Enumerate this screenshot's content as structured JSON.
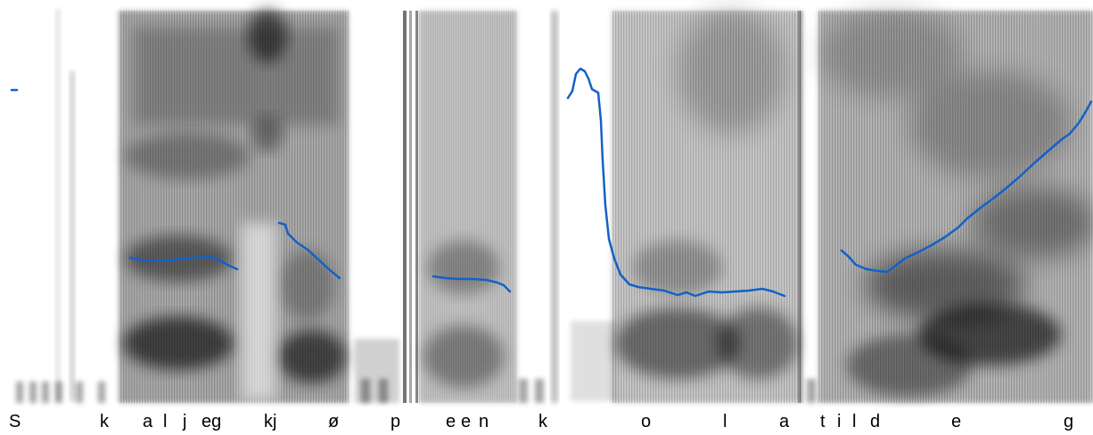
{
  "colors": {
    "background": "#ffffff",
    "spectrogram_ink": "#000000",
    "pitch_contour": "#1560c8",
    "label_text": "#000000"
  },
  "segment_labels": [
    {
      "text": "S"
    },
    {
      "text": "k"
    },
    {
      "text": "a"
    },
    {
      "text": "l"
    },
    {
      "text": "j"
    },
    {
      "text": "eg"
    },
    {
      "text": "kj"
    },
    {
      "text": "ø"
    },
    {
      "text": "p"
    },
    {
      "text": "e"
    },
    {
      "text": "e"
    },
    {
      "text": "n"
    },
    {
      "text": "k"
    },
    {
      "text": "o"
    },
    {
      "text": "l"
    },
    {
      "text": "a"
    },
    {
      "text": "t"
    },
    {
      "text": "i"
    },
    {
      "text": "l"
    },
    {
      "text": "d"
    },
    {
      "text": "e"
    },
    {
      "text": "g"
    }
  ]
}
